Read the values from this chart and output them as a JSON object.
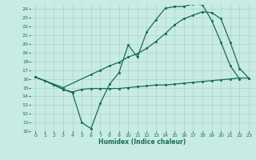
{
  "xlabel": "Humidex (Indice chaleur)",
  "background_color": "#c8ebe3",
  "grid_color": "#a8d5cb",
  "line_color": "#1a6b5a",
  "xlim": [
    -0.5,
    23.5
  ],
  "ylim": [
    10,
    24.5
  ],
  "yticks": [
    10,
    11,
    12,
    13,
    14,
    15,
    16,
    17,
    18,
    19,
    20,
    21,
    22,
    23,
    24
  ],
  "xticks": [
    0,
    1,
    2,
    3,
    4,
    5,
    6,
    7,
    8,
    9,
    10,
    11,
    12,
    13,
    14,
    15,
    16,
    17,
    18,
    19,
    20,
    21,
    22,
    23
  ],
  "line1_x": [
    0,
    1,
    2,
    3,
    4,
    5,
    6,
    7,
    8,
    9,
    10,
    11,
    12,
    13,
    14,
    15,
    16,
    17,
    18,
    19,
    20,
    21,
    22
  ],
  "line1_y": [
    16.2,
    15.8,
    15.3,
    14.8,
    14.4,
    11.0,
    10.3,
    13.2,
    15.4,
    16.7,
    19.9,
    18.5,
    21.4,
    22.8,
    24.1,
    24.3,
    24.3,
    24.6,
    24.5,
    22.7,
    20.2,
    17.5,
    16.0
  ],
  "line2_x": [
    0,
    3,
    6,
    7,
    8,
    9,
    10,
    11,
    12,
    13,
    14,
    15,
    16,
    17,
    18,
    19,
    20,
    21,
    22,
    23
  ],
  "line2_y": [
    16.2,
    15.0,
    16.5,
    17.0,
    17.5,
    17.9,
    18.5,
    18.9,
    19.5,
    20.3,
    21.2,
    22.2,
    22.9,
    23.3,
    23.7,
    23.6,
    22.9,
    20.2,
    17.2,
    16.1
  ],
  "line3_x": [
    0,
    1,
    2,
    3,
    4,
    5,
    6,
    7,
    8,
    9,
    10,
    11,
    12,
    13,
    14,
    15,
    16,
    17,
    18,
    19,
    20,
    21,
    22,
    23
  ],
  "line3_y": [
    16.2,
    15.8,
    15.3,
    14.8,
    14.5,
    14.8,
    14.9,
    14.9,
    14.9,
    14.9,
    15.0,
    15.1,
    15.2,
    15.3,
    15.3,
    15.4,
    15.5,
    15.6,
    15.7,
    15.8,
    15.9,
    16.0,
    16.1,
    16.1
  ]
}
